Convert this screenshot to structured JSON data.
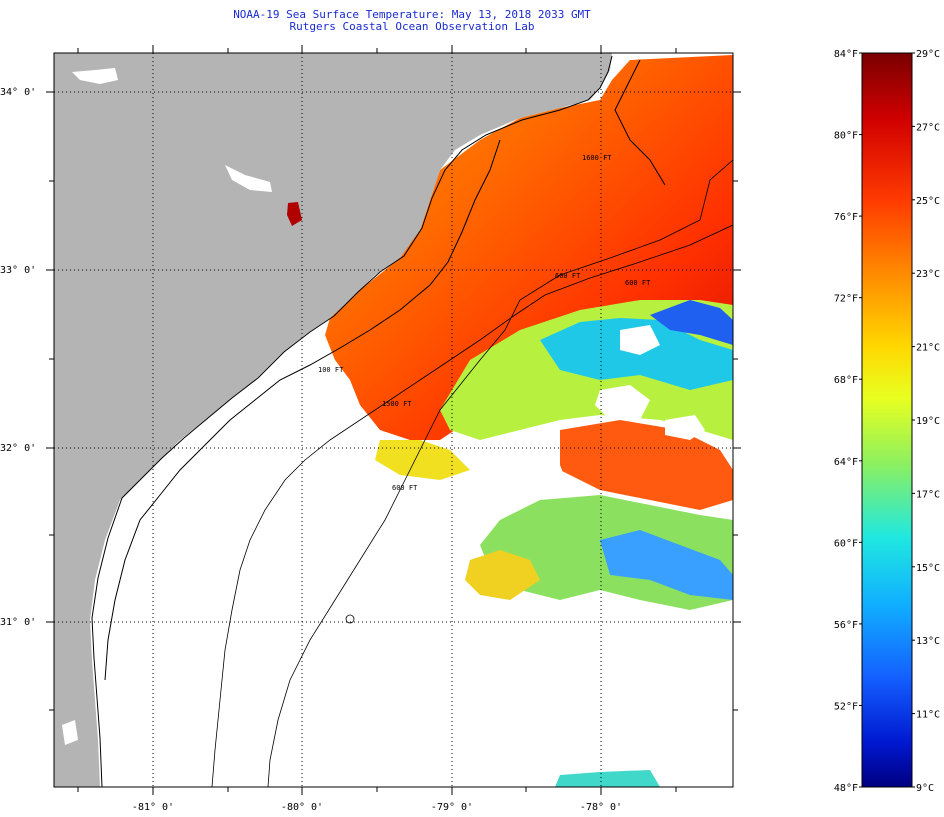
{
  "header": {
    "title_line1": "NOAA-19 Sea Surface Temperature:  May 13, 2018 2033 GMT",
    "title_line2": "Rutgers Coastal Ocean Observation Lab"
  },
  "map": {
    "lat_labels": [
      "34° 0'",
      "33° 0'",
      "32° 0'",
      "31° 0'"
    ],
    "lon_labels": [
      "-81° 0'",
      "-80° 0'",
      "-79° 0'",
      "-78° 0'"
    ],
    "isobath_labels": [
      "1600 FT",
      "600 FT",
      "100 FT",
      "600 FT",
      "1500 FT",
      "600 FT"
    ],
    "colors": {
      "land": "#b4b4b4",
      "no_data": "#ffffff",
      "coast": "#000000"
    }
  },
  "colorbar": {
    "f_labels": [
      "84°F",
      "80°F",
      "76°F",
      "72°F",
      "68°F",
      "64°F",
      "60°F",
      "56°F",
      "52°F",
      "48°F"
    ],
    "c_labels": [
      "29°C",
      "27°C",
      "25°C",
      "23°C",
      "21°C",
      "19°C",
      "17°C",
      "15°C",
      "13°C",
      "11°C",
      "9°C"
    ],
    "stops": [
      "#7a0000",
      "#d00000",
      "#ff3a00",
      "#ff8a00",
      "#ffd800",
      "#e8ff20",
      "#8cf060",
      "#20e8e0",
      "#10b0ff",
      "#1460ff",
      "#0018d0",
      "#000080"
    ]
  }
}
